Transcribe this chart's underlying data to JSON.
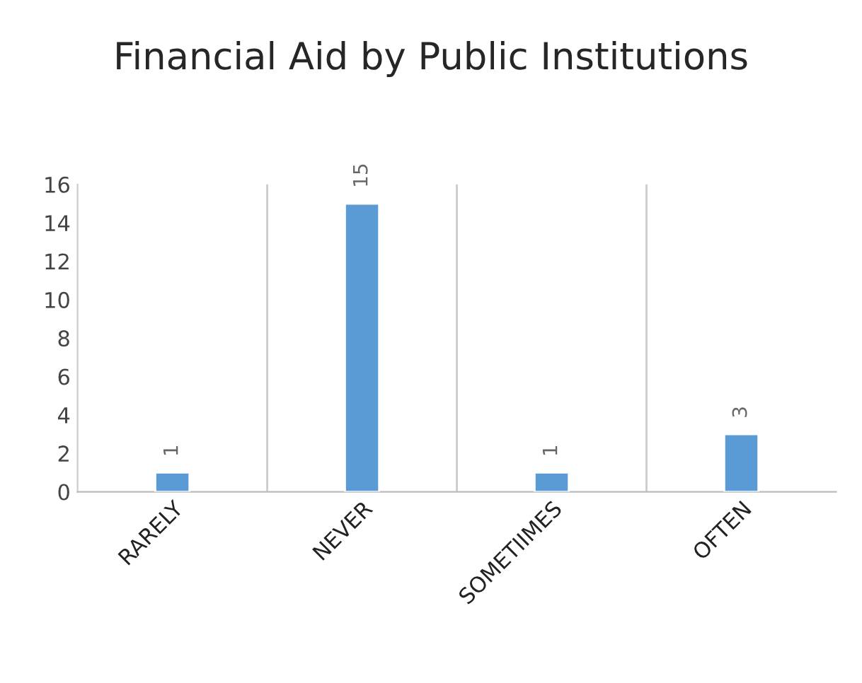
{
  "chart_data": {
    "type": "bar",
    "title": "Financial Aid by Public Institutions",
    "categories": [
      "RARELY",
      "NEVER",
      "SOMETIIMES",
      "OFTEN"
    ],
    "values": [
      1,
      15,
      1,
      3
    ],
    "color": "#5b9bd5",
    "ylim": [
      0,
      16
    ],
    "yticks": [
      0,
      2,
      4,
      6,
      8,
      10,
      12,
      14,
      16
    ],
    "grid": "x",
    "data_labels": true
  }
}
